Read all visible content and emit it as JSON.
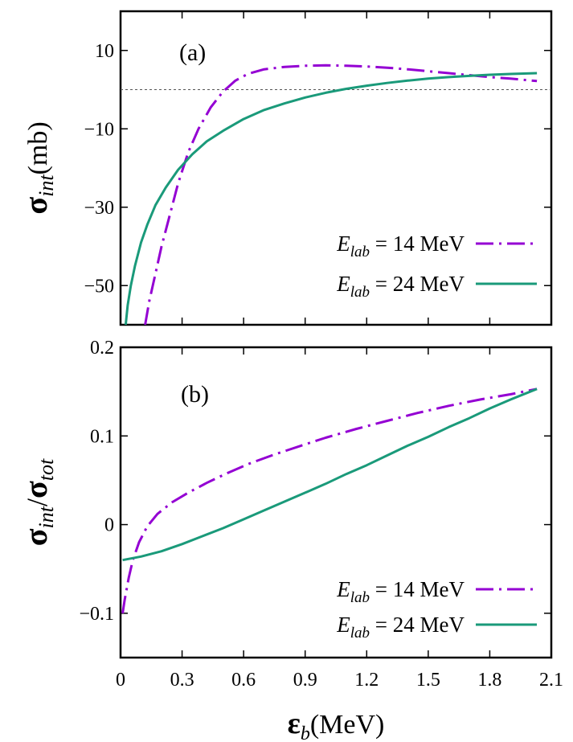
{
  "chart_data": [
    {
      "panel": "a",
      "type": "line",
      "panel_label": "(a)",
      "xlabel": "",
      "ylabel": "σint(mb)",
      "xlim": [
        0,
        2.1
      ],
      "ylim": [
        -60,
        20
      ],
      "yticks": [
        10,
        -10,
        -30,
        -50
      ],
      "ytick_labels": [
        "10",
        "−10",
        "−30",
        "−50"
      ],
      "xticks": [
        0,
        0.3,
        0.6,
        0.9,
        1.2,
        1.5,
        1.8,
        2.1
      ],
      "zero_line": true,
      "series": [
        {
          "name": "E_lab = 14 MeV",
          "legend_label": "Elab = 14 MeV",
          "color": "#9400D3",
          "dash": "dashdot",
          "x": [
            0.12,
            0.14,
            0.17,
            0.2,
            0.24,
            0.28,
            0.33,
            0.38,
            0.44,
            0.5,
            0.56,
            0.62,
            0.7,
            0.8,
            0.9,
            1.0,
            1.1,
            1.2,
            1.3,
            1.4,
            1.5,
            1.6,
            1.7,
            1.8,
            1.9,
            2.03
          ],
          "y": [
            -60,
            -54,
            -47,
            -40,
            -32,
            -24,
            -16,
            -10,
            -4.5,
            -0.5,
            2.3,
            4,
            5.2,
            5.8,
            6.1,
            6.2,
            6.1,
            5.9,
            5.6,
            5.2,
            4.7,
            4.2,
            3.7,
            3.2,
            2.8,
            2.2
          ]
        },
        {
          "name": "E_lab = 24 MeV",
          "legend_label": "Elab = 24 MeV",
          "color": "#1A9A7A",
          "dash": "solid",
          "x": [
            0.025,
            0.035,
            0.05,
            0.07,
            0.1,
            0.13,
            0.17,
            0.22,
            0.28,
            0.35,
            0.42,
            0.5,
            0.6,
            0.7,
            0.8,
            0.9,
            1.0,
            1.1,
            1.2,
            1.3,
            1.4,
            1.5,
            1.6,
            1.7,
            1.8,
            1.9,
            2.03
          ],
          "y": [
            -60,
            -55,
            -50,
            -45,
            -39,
            -34.5,
            -29.5,
            -25,
            -20.5,
            -16.5,
            -13.2,
            -10.5,
            -7.5,
            -5.2,
            -3.5,
            -2,
            -0.8,
            0.2,
            1,
            1.7,
            2.3,
            2.8,
            3.2,
            3.5,
            3.8,
            4,
            4.2
          ]
        }
      ]
    },
    {
      "panel": "b",
      "type": "line",
      "panel_label": "(b)",
      "xlabel": "εb(MeV)",
      "ylabel": "σint/σtot",
      "xlim": [
        0,
        2.1
      ],
      "ylim": [
        -0.15,
        0.2
      ],
      "yticks": [
        0.2,
        0.1,
        0,
        -0.1
      ],
      "ytick_labels": [
        "0.2",
        "0.1",
        "0",
        "−0.1"
      ],
      "xticks": [
        0,
        0.3,
        0.6,
        0.9,
        1.2,
        1.5,
        1.8,
        2.1
      ],
      "xtick_labels": [
        "0",
        "0.3",
        "0.6",
        "0.9",
        "1.2",
        "1.5",
        "1.8",
        "2.1"
      ],
      "zero_line": false,
      "series": [
        {
          "name": "E_lab = 14 MeV",
          "legend_label": "Elab = 14 MeV",
          "color": "#9400D3",
          "dash": "dashdot",
          "x": [
            0.01,
            0.02,
            0.04,
            0.06,
            0.09,
            0.13,
            0.18,
            0.25,
            0.33,
            0.42,
            0.52,
            0.63,
            0.75,
            0.88,
            1.0,
            1.15,
            1.3,
            1.45,
            1.6,
            1.75,
            1.9,
            2.03
          ],
          "y": [
            -0.1,
            -0.085,
            -0.06,
            -0.04,
            -0.02,
            -0.002,
            0.012,
            0.025,
            0.036,
            0.047,
            0.058,
            0.069,
            0.079,
            0.089,
            0.098,
            0.108,
            0.117,
            0.126,
            0.134,
            0.141,
            0.147,
            0.153
          ]
        },
        {
          "name": "E_lab = 24 MeV",
          "legend_label": "Elab = 24 MeV",
          "color": "#1A9A7A",
          "dash": "solid",
          "x": [
            0.01,
            0.1,
            0.2,
            0.3,
            0.4,
            0.5,
            0.6,
            0.7,
            0.8,
            0.9,
            1.0,
            1.1,
            1.2,
            1.3,
            1.4,
            1.5,
            1.6,
            1.7,
            1.8,
            1.9,
            2.03
          ],
          "y": [
            -0.04,
            -0.036,
            -0.03,
            -0.022,
            -0.013,
            -0.004,
            0.006,
            0.016,
            0.026,
            0.036,
            0.046,
            0.057,
            0.067,
            0.078,
            0.089,
            0.099,
            0.11,
            0.12,
            0.131,
            0.141,
            0.153
          ]
        }
      ]
    }
  ],
  "labels": {
    "a_ylabel_main": "σ",
    "a_ylabel_sub": "int",
    "a_ylabel_unit": "(mb)",
    "b_ylabel_main1": "σ",
    "b_ylabel_sub1": "int",
    "b_ylabel_slash": "/",
    "b_ylabel_main2": "σ",
    "b_ylabel_sub2": "tot",
    "x_main": "ε",
    "x_sub": "b",
    "x_unit": "(MeV)",
    "legend_E": "E",
    "legend_sub": "lab",
    "legend_rel": " = ",
    "legend_14": "14 MeV",
    "legend_24": "24 MeV"
  }
}
